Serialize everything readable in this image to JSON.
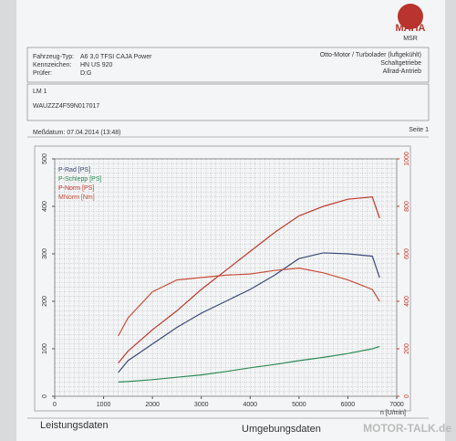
{
  "header": {
    "logo": "MAHA",
    "logo_sub": "MSR",
    "fields": [
      [
        "Fahrzeug-Typ:",
        "A6 3,0 TFSI CAJA Power"
      ],
      [
        "Kennzeichen:",
        "HN US 920"
      ],
      [
        "Prüfer:",
        "D:G"
      ]
    ],
    "engine": [
      "Otto-Motor / Turbolader (luftgekühlt)",
      "Schaltgetriebe",
      "Allrad-Antrieb"
    ],
    "run": "LM 1",
    "vin": "WAUZZZ4F59N017017",
    "date": "Meßdatum: 07.04.2014 (13:48)",
    "page": "Seite 1"
  },
  "chart_data": {
    "type": "line",
    "x_label": "n [U/min]",
    "x": [
      1300,
      1500,
      2000,
      2500,
      3000,
      3500,
      4000,
      4500,
      5000,
      5500,
      6000,
      6500,
      6650
    ],
    "xlim": [
      0,
      7000
    ],
    "xticks": [
      0,
      1000,
      2000,
      3000,
      4000,
      5000,
      6000,
      7000
    ],
    "ylim": [
      0,
      500
    ],
    "yticks": [
      0,
      100,
      200,
      300,
      400,
      500
    ],
    "y2lim": [
      0,
      1000
    ],
    "y2ticks": [
      0,
      200,
      400,
      600,
      800,
      1000
    ],
    "grid": true,
    "series": [
      {
        "name": "P-Rad [PS]",
        "color": "#3b4a78",
        "values": [
          50,
          75,
          110,
          145,
          175,
          200,
          225,
          255,
          290,
          302,
          300,
          295,
          250
        ]
      },
      {
        "name": "P-Schlepp [PS]",
        "color": "#2e8b57",
        "values": [
          30,
          31,
          35,
          40,
          45,
          52,
          60,
          67,
          75,
          82,
          90,
          100,
          105
        ]
      },
      {
        "name": "P-Norm [PS]",
        "color": "#c0392b",
        "values": [
          70,
          95,
          140,
          180,
          225,
          265,
          305,
          345,
          380,
          400,
          415,
          420,
          375
        ]
      },
      {
        "name": "MNorm [Nm]",
        "color": "#c8503c",
        "axis": "y2",
        "values": [
          254,
          330,
          440,
          490,
          500,
          510,
          515,
          530,
          540,
          520,
          490,
          450,
          400
        ]
      }
    ]
  },
  "footer": {
    "left": "Leistungsdaten",
    "right": "Umgebungsdaten",
    "watermark": "MOTOR-TALK.de"
  }
}
